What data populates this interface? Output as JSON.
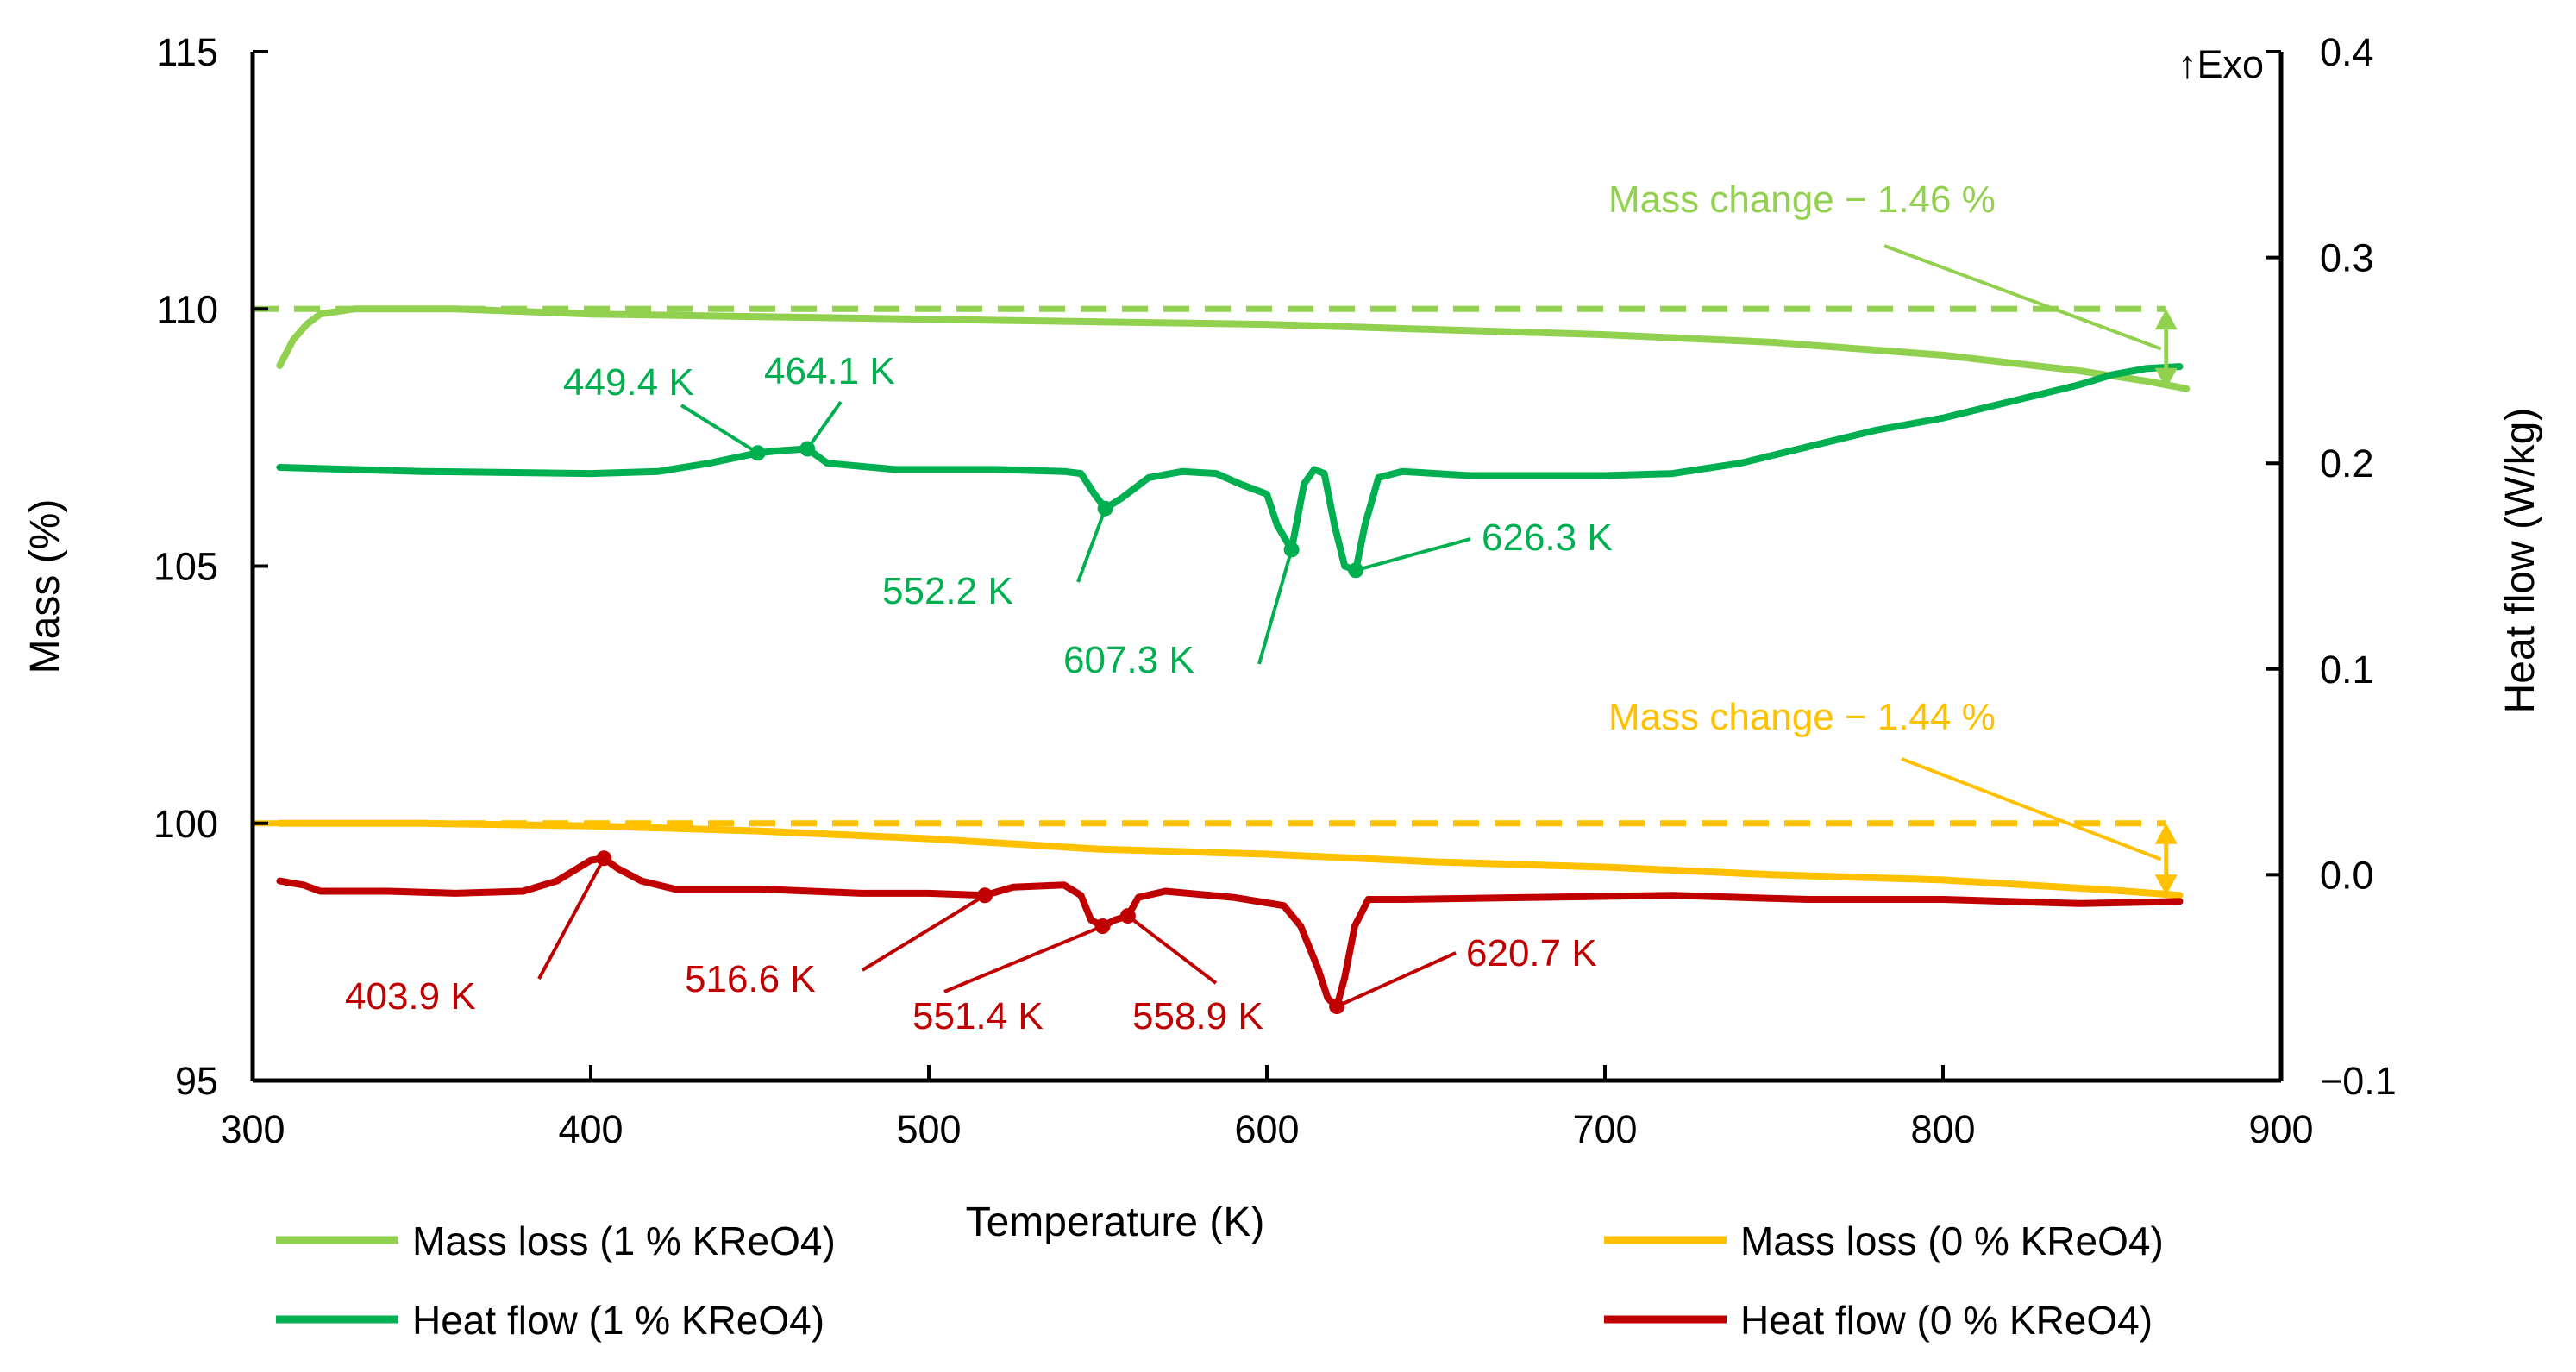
{
  "chart_data": {
    "type": "line",
    "xlabel": "Temperature (K)",
    "ylabel_left": "Mass (%)",
    "ylabel_right": "Heat flow (W/kg)",
    "xlim": [
      300,
      900
    ],
    "ylim_left": [
      95,
      115
    ],
    "ylim_right": [
      -0.1,
      0.4
    ],
    "x_ticks": [
      "300",
      "400",
      "500",
      "600",
      "700",
      "800",
      "900"
    ],
    "y_left_ticks": [
      "95",
      "100",
      "105",
      "110",
      "115"
    ],
    "y_right_ticks": [
      "−0.1",
      "0.0",
      "0.1",
      "0.2",
      "0.3",
      "0.4"
    ],
    "exo_label": "↑Exo",
    "colors": {
      "mass_1": "#92d050",
      "heat_1": "#00b050",
      "mass_0": "#ffc000",
      "heat_0": "#c00000"
    },
    "series": [
      {
        "name": "Mass loss (1 % KReO4)",
        "axis": "left",
        "color": "#92d050",
        "x": [
          308,
          312,
          316,
          320,
          330,
          340,
          360,
          380,
          400,
          450,
          500,
          550,
          600,
          650,
          700,
          750,
          800,
          840,
          860,
          872
        ],
        "y": [
          108.9,
          109.4,
          109.7,
          109.9,
          110.0,
          110.0,
          110.0,
          109.95,
          109.9,
          109.85,
          109.8,
          109.75,
          109.7,
          109.6,
          109.5,
          109.35,
          109.1,
          108.8,
          108.6,
          108.45
        ]
      },
      {
        "name": "Heat flow (1 % KReO4)",
        "axis": "right",
        "color": "#00b050",
        "x": [
          308,
          350,
          400,
          420,
          435,
          449.4,
          455,
          464.1,
          470,
          490,
          520,
          540,
          545,
          549,
          552.2,
          557,
          565,
          575,
          585,
          592,
          600,
          603,
          607.3,
          611,
          614,
          617,
          620,
          623,
          626.3,
          629,
          633,
          640,
          660,
          700,
          720,
          740,
          760,
          780,
          800,
          820,
          840,
          850,
          860,
          870
        ],
        "y": [
          0.198,
          0.196,
          0.195,
          0.196,
          0.2,
          0.205,
          0.206,
          0.207,
          0.2,
          0.197,
          0.197,
          0.196,
          0.195,
          0.185,
          0.178,
          0.183,
          0.193,
          0.196,
          0.195,
          0.19,
          0.185,
          0.17,
          0.158,
          0.19,
          0.197,
          0.195,
          0.17,
          0.15,
          0.148,
          0.17,
          0.193,
          0.196,
          0.194,
          0.194,
          0.195,
          0.2,
          0.208,
          0.216,
          0.222,
          0.23,
          0.238,
          0.243,
          0.246,
          0.247
        ]
      },
      {
        "name": "Mass loss (0 % KReO4)",
        "axis": "left",
        "color": "#ffc000",
        "x": [
          308,
          350,
          400,
          450,
          500,
          550,
          600,
          650,
          700,
          750,
          800,
          850,
          870
        ],
        "y": [
          100.0,
          100.0,
          99.95,
          99.85,
          99.7,
          99.5,
          99.4,
          99.25,
          99.15,
          99.0,
          98.9,
          98.7,
          98.6
        ],
        "reference_level": 100
      },
      {
        "name": "Heat flow (0 % KReO4)",
        "axis": "right",
        "color": "#c00000",
        "x": [
          308,
          315,
          320,
          340,
          360,
          380,
          390,
          400,
          403.9,
          408,
          415,
          425,
          450,
          480,
          500,
          516.6,
          525,
          540,
          545,
          548,
          551.4,
          555,
          558.9,
          562,
          570,
          590,
          605,
          610,
          615,
          618,
          620.7,
          623,
          626,
          630,
          640,
          680,
          720,
          760,
          800,
          840,
          870
        ],
        "y": [
          -0.003,
          -0.005,
          -0.008,
          -0.008,
          -0.009,
          -0.008,
          -0.003,
          0.007,
          0.008,
          0.003,
          -0.003,
          -0.007,
          -0.007,
          -0.009,
          -0.009,
          -0.01,
          -0.006,
          -0.005,
          -0.01,
          -0.022,
          -0.025,
          -0.022,
          -0.02,
          -0.011,
          -0.008,
          -0.011,
          -0.015,
          -0.025,
          -0.045,
          -0.06,
          -0.064,
          -0.05,
          -0.025,
          -0.012,
          -0.012,
          -0.011,
          -0.01,
          -0.012,
          -0.012,
          -0.014,
          -0.013
        ]
      }
    ],
    "reference_lines": [
      {
        "axis": "left",
        "y": 110,
        "color": "#92d050"
      },
      {
        "axis": "left",
        "y": 100,
        "color": "#ffc000"
      }
    ],
    "annotations": [
      {
        "text": "Mass change − 1.46 %",
        "color": "#92d050"
      },
      {
        "text": "Mass change − 1.44 %",
        "color": "#ffc000"
      },
      {
        "text": "449.4 K",
        "color": "#00b050",
        "x": 449.4
      },
      {
        "text": "464.1 K",
        "color": "#00b050",
        "x": 464.1
      },
      {
        "text": "552.2 K",
        "color": "#00b050",
        "x": 552.2
      },
      {
        "text": "607.3 K",
        "color": "#00b050",
        "x": 607.3
      },
      {
        "text": "626.3 K",
        "color": "#00b050",
        "x": 626.3
      },
      {
        "text": "403.9 K",
        "color": "#c00000",
        "x": 403.9
      },
      {
        "text": "516.6 K",
        "color": "#c00000",
        "x": 516.6
      },
      {
        "text": "551.4 K",
        "color": "#c00000",
        "x": 551.4
      },
      {
        "text": "558.9 K",
        "color": "#c00000",
        "x": 558.9
      },
      {
        "text": "620.7 K",
        "color": "#c00000",
        "x": 620.7
      }
    ],
    "legend": {
      "placement": "bottom",
      "items": [
        "Mass loss (1 % KReO4)",
        "Heat flow (1 % KReO4)",
        "Mass loss (0 % KReO4)",
        "Heat flow (0 % KReO4)"
      ]
    }
  }
}
